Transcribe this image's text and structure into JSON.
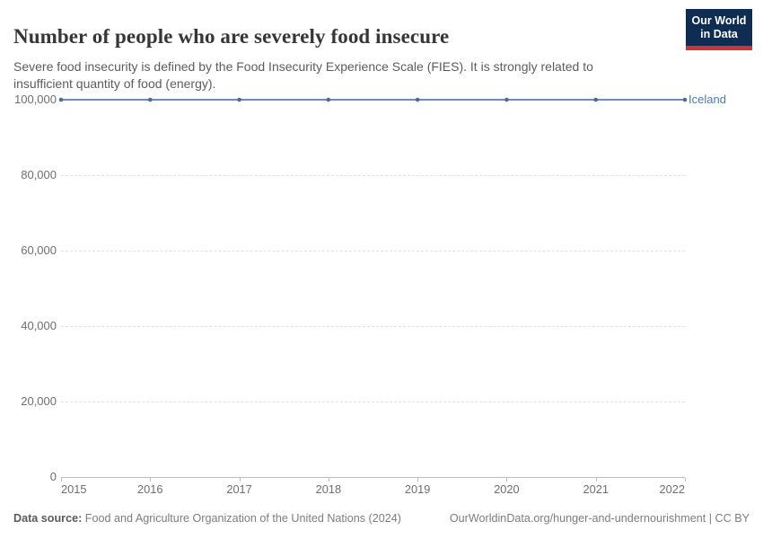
{
  "header": {
    "title": "Number of people who are severely food insecure",
    "subtitle": "Severe food insecurity is defined by the Food Insecurity Experience Scale (FIES). It is strongly related to insufficient quantity of food (energy)."
  },
  "logo": {
    "line1": "Our World",
    "line2": "in Data",
    "background": "#0f2d52",
    "accent": "#cf3335"
  },
  "chart_data": {
    "type": "line",
    "title": "Number of people who are severely food insecure",
    "x": [
      2015,
      2016,
      2017,
      2018,
      2019,
      2020,
      2021,
      2022
    ],
    "x_tick_labels": [
      "2015",
      "2016",
      "2017",
      "2018",
      "2019",
      "2020",
      "2021",
      "2022"
    ],
    "series": [
      {
        "name": "Iceland",
        "values": [
          100000,
          100000,
          100000,
          100000,
          100000,
          100000,
          100000,
          100000
        ],
        "color": "#5b7bb3"
      }
    ],
    "ylim": [
      0,
      100000
    ],
    "yticks": [
      {
        "value": 0,
        "label": "0"
      },
      {
        "value": 20000,
        "label": "20,000"
      },
      {
        "value": 40000,
        "label": "40,000"
      },
      {
        "value": 60000,
        "label": "60,000"
      },
      {
        "value": 80000,
        "label": "80,000"
      },
      {
        "value": 100000,
        "label": "100,000"
      }
    ],
    "grid": "horizontal-dashed",
    "legend": "line-end-label"
  },
  "colors": {
    "line": "#5b7bb3",
    "marker": "#4a69a2",
    "entity_label": "#4e79b6",
    "grid": "#e0e0e0",
    "axis": "#bdbdbd",
    "tick_text": "#6e6e6e"
  },
  "footer": {
    "source_label": "Data source:",
    "source_text": " Food and Agriculture Organization of the United Nations (2024)",
    "credit_text": "OurWorldinData.org/hunger-and-undernourishment | CC BY"
  }
}
